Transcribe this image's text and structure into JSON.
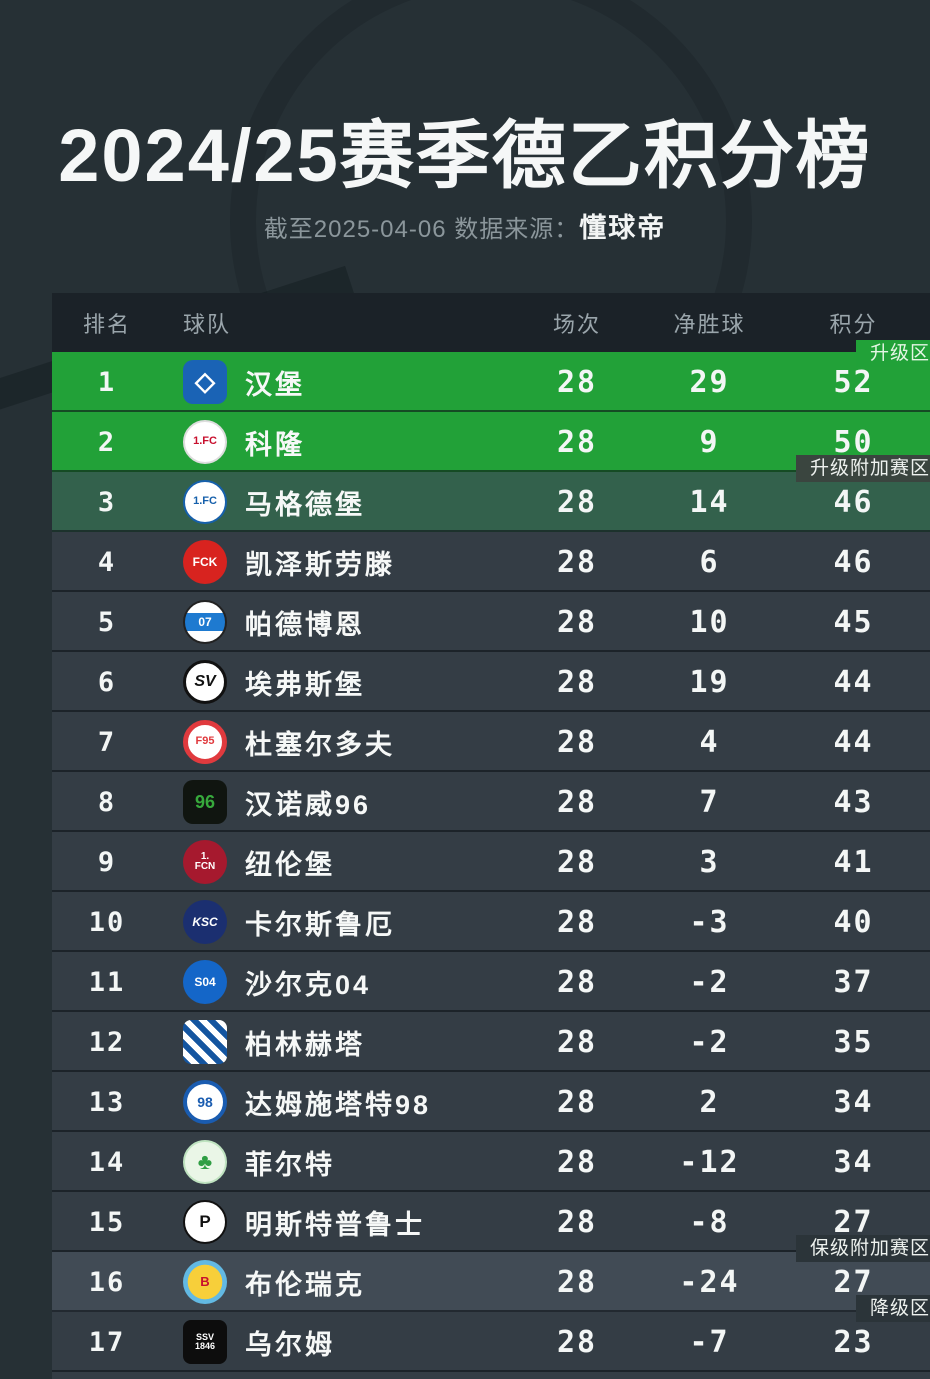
{
  "header": {
    "title": "2024/25赛季德乙积分榜",
    "subtitle_prefix": "截至2025-04-06 数据来源：",
    "subtitle_source": "懂球帝"
  },
  "colors": {
    "page_bg": "#263035",
    "header_row_bg": "#1b2228",
    "row_bg": "#343d45",
    "promotion_green": "#22a138",
    "playoff_green": "#33614c",
    "highlight_row": "#414b55"
  },
  "table": {
    "columns": {
      "rank": "排名",
      "team": "球队",
      "matches": "场次",
      "gd": "净胜球",
      "points": "积分"
    },
    "zones": {
      "promotion": "升级区",
      "promotion_playoff": "升级附加赛区",
      "relegation_playoff": "保级附加赛区",
      "relegation": "降级区"
    },
    "rows": [
      {
        "rank": 1,
        "id": "hamburg",
        "name": "汉堡",
        "matches": 28,
        "gd": 29,
        "points": 52,
        "style": "promotion",
        "logo": {
          "text": "◇",
          "bg": "#1a63b5",
          "color": "#ffffff",
          "radius": "10px",
          "size": "26px"
        }
      },
      {
        "rank": 2,
        "id": "koln",
        "name": "科隆",
        "matches": 28,
        "gd": 9,
        "points": 50,
        "style": "promotion",
        "logo": {
          "text": "1.FC",
          "bg": "#ffffff",
          "color": "#c8102e",
          "size": "11px",
          "border": "2px solid #dddddd"
        }
      },
      {
        "rank": 3,
        "id": "magdeburg",
        "name": "马格德堡",
        "matches": 28,
        "gd": 14,
        "points": 46,
        "style": "playoff",
        "logo": {
          "text": "1.FC",
          "bg": "#ffffff",
          "color": "#1660ab",
          "size": "11px",
          "border": "2px solid #1660ab"
        }
      },
      {
        "rank": 4,
        "id": "kaiserslautern",
        "name": "凯泽斯劳滕",
        "matches": 28,
        "gd": 6,
        "points": 46,
        "style": "normal",
        "logo": {
          "text": "FCK",
          "bg": "#d8231f",
          "color": "#ffffff",
          "size": "12px"
        }
      },
      {
        "rank": 5,
        "id": "paderborn",
        "name": "帕德博恩",
        "matches": 28,
        "gd": 10,
        "points": 45,
        "style": "normal",
        "logo": {
          "text": "07",
          "bg": "linear-gradient(180deg,#ffffff 28%,#1e7ad0 28%,#1e7ad0 72%,#ffffff 72%)",
          "color": "#ffffff",
          "size": "12px",
          "border": "2px solid #222222"
        }
      },
      {
        "rank": 6,
        "id": "elversberg",
        "name": "埃弗斯堡",
        "matches": 28,
        "gd": 19,
        "points": 44,
        "style": "normal",
        "logo": {
          "text": "SV",
          "bg": "#ffffff",
          "color": "#111111",
          "size": "16px",
          "border": "3px solid #111111",
          "italic": true
        }
      },
      {
        "rank": 7,
        "id": "dusseldorf",
        "name": "杜塞尔多夫",
        "matches": 28,
        "gd": 4,
        "points": 44,
        "style": "normal",
        "logo": {
          "text": "F95",
          "bg": "#ffffff",
          "color": "#e03a3e",
          "size": "11px",
          "border": "5px solid #e03a3e"
        }
      },
      {
        "rank": 8,
        "id": "hannover96",
        "name": "汉诺威96",
        "matches": 28,
        "gd": 7,
        "points": 43,
        "style": "normal",
        "logo": {
          "text": "96",
          "bg": "#101510",
          "color": "#37a93c",
          "radius": "10px",
          "size": "18px"
        }
      },
      {
        "rank": 9,
        "id": "nurnberg",
        "name": "纽伦堡",
        "matches": 28,
        "gd": 3,
        "points": 41,
        "style": "normal",
        "logo": {
          "text": "1.\nFCN",
          "bg": "#a6192e",
          "color": "#ffffff",
          "size": "10px"
        }
      },
      {
        "rank": 10,
        "id": "karlsruher",
        "name": "卡尔斯鲁厄",
        "matches": 28,
        "gd": -3,
        "points": 40,
        "style": "normal",
        "logo": {
          "text": "KSC",
          "bg": "#1b2f70",
          "color": "#ffffff",
          "size": "12px",
          "italic": true
        }
      },
      {
        "rank": 11,
        "id": "schalke04",
        "name": "沙尔克04",
        "matches": 28,
        "gd": -2,
        "points": 37,
        "style": "normal",
        "logo": {
          "text": "S04",
          "bg": "#1466c8",
          "color": "#ffffff",
          "size": "12px"
        }
      },
      {
        "rank": 12,
        "id": "hertha",
        "name": "柏林赫塔",
        "matches": 28,
        "gd": -2,
        "points": 35,
        "style": "normal",
        "logo": {
          "text": "",
          "bg": "repeating-linear-gradient(45deg,#1455a0 0,#1455a0 6px,#ffffff 6px,#ffffff 12px)",
          "color": "#ffffff",
          "radius": "8px",
          "size": "10px"
        }
      },
      {
        "rank": 13,
        "id": "darmstadt98",
        "name": "达姆施塔特98",
        "matches": 28,
        "gd": 2,
        "points": 34,
        "style": "normal",
        "logo": {
          "text": "98",
          "bg": "#ffffff",
          "color": "#1a5cb0",
          "size": "14px",
          "border": "4px solid #1a5cb0"
        }
      },
      {
        "rank": 14,
        "id": "furth",
        "name": "菲尔特",
        "matches": 28,
        "gd": -12,
        "points": 34,
        "style": "normal",
        "logo": {
          "text": "♣",
          "bg": "#eaf6e7",
          "color": "#2f9e44",
          "size": "22px",
          "border": "2px solid #bfe3c0"
        }
      },
      {
        "rank": 15,
        "id": "munster",
        "name": "明斯特普鲁士",
        "matches": 28,
        "gd": -8,
        "points": 27,
        "style": "normal",
        "logo": {
          "text": "P",
          "bg": "#ffffff",
          "color": "#111111",
          "size": "17px",
          "border": "2px solid #111111"
        }
      },
      {
        "rank": 16,
        "id": "braunschweig",
        "name": "布伦瑞克",
        "matches": 28,
        "gd": -24,
        "points": 27,
        "style": "highlight",
        "logo": {
          "text": "B",
          "bg": "radial-gradient(circle,#f7cf3a 55%,#62b9e3 56%)",
          "color": "#c8102e",
          "size": "13px"
        }
      },
      {
        "rank": 17,
        "id": "ulm",
        "name": "乌尔姆",
        "matches": 28,
        "gd": -7,
        "points": 23,
        "style": "normal",
        "logo": {
          "text": "SSV\n1846",
          "bg": "#0d0d0d",
          "color": "#ffffff",
          "radius": "8px",
          "size": "9px"
        }
      }
    ]
  },
  "chart_data": {
    "type": "table",
    "title": "2024/25赛季德乙积分榜",
    "as_of": "截至2025-04-06",
    "source": "懂球帝",
    "columns": [
      "排名",
      "球队",
      "场次",
      "净胜球",
      "积分"
    ],
    "rows": [
      [
        1,
        "汉堡",
        28,
        29,
        52
      ],
      [
        2,
        "科隆",
        28,
        9,
        50
      ],
      [
        3,
        "马格德堡",
        28,
        14,
        46
      ],
      [
        4,
        "凯泽斯劳滕",
        28,
        6,
        46
      ],
      [
        5,
        "帕德博恩",
        28,
        10,
        45
      ],
      [
        6,
        "埃弗斯堡",
        28,
        19,
        44
      ],
      [
        7,
        "杜塞尔多夫",
        28,
        4,
        44
      ],
      [
        8,
        "汉诺威96",
        28,
        7,
        43
      ],
      [
        9,
        "纽伦堡",
        28,
        3,
        41
      ],
      [
        10,
        "卡尔斯鲁厄",
        28,
        -3,
        40
      ],
      [
        11,
        "沙尔克04",
        28,
        -2,
        37
      ],
      [
        12,
        "柏林赫塔",
        28,
        -2,
        35
      ],
      [
        13,
        "达姆施塔特98",
        28,
        2,
        34
      ],
      [
        14,
        "菲尔特",
        28,
        -12,
        34
      ],
      [
        15,
        "明斯特普鲁士",
        28,
        -8,
        27
      ],
      [
        16,
        "布伦瑞克",
        28,
        -24,
        27
      ],
      [
        17,
        "乌尔姆",
        28,
        -7,
        23
      ]
    ],
    "zone_annotations": {
      "升级区": [
        1,
        2
      ],
      "升级附加赛区": [
        3
      ],
      "保级附加赛区": [
        16
      ],
      "降级区": [
        17
      ]
    }
  }
}
